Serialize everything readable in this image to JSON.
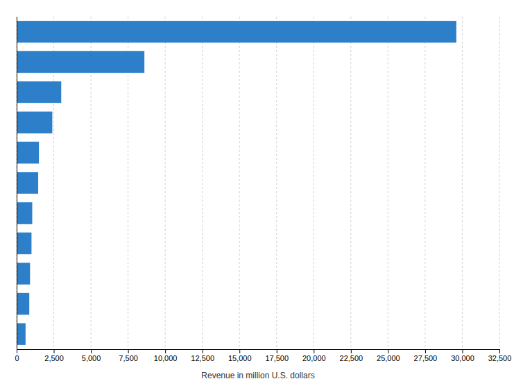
{
  "chart_data": {
    "type": "bar",
    "orientation": "horizontal",
    "xlabel": "Revenue in million U.S. dollars",
    "categories": [
      null,
      null,
      null,
      null,
      null,
      null,
      null,
      null,
      null,
      null,
      null
    ],
    "values": [
      29600,
      8600,
      3000,
      2400,
      1500,
      1450,
      1050,
      1000,
      900,
      850,
      600
    ],
    "color": "#2e7fca",
    "xlim": [
      0,
      32500
    ],
    "xticks": [
      0,
      {
        "value": 2500,
        "label": "2,500"
      },
      {
        "value": 5000,
        "label": "5,000"
      },
      {
        "value": 7500,
        "label": "7,500"
      },
      {
        "value": 10000,
        "label": "10,000"
      },
      {
        "value": 12500,
        "label": "12,500"
      },
      {
        "value": 15000,
        "label": "15,000"
      },
      {
        "value": 17500,
        "label": "17,500"
      },
      {
        "value": 20000,
        "label": "20,000"
      },
      {
        "value": 22500,
        "label": "22,500"
      },
      {
        "value": 25000,
        "label": "25,000"
      },
      {
        "value": 27500,
        "label": "27,500"
      },
      {
        "value": 30000,
        "label": "30,000"
      },
      {
        "value": 32500,
        "label": "32,500"
      }
    ],
    "grid": true,
    "tick_labels": "x"
  }
}
